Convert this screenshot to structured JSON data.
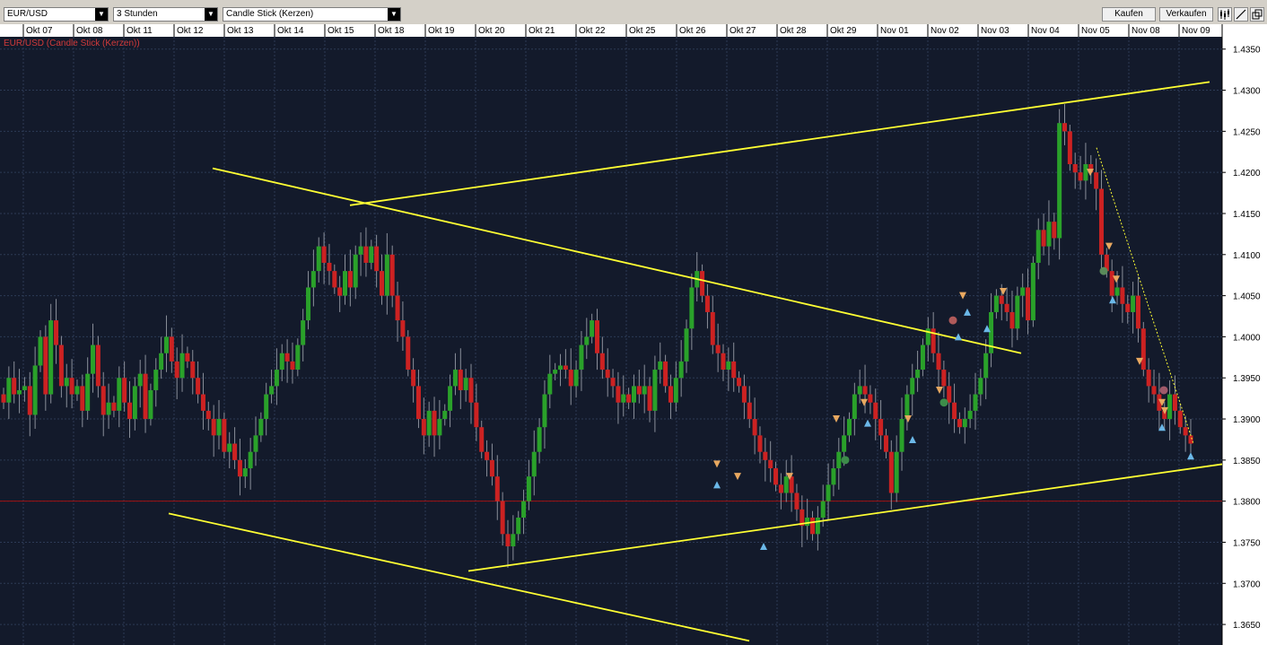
{
  "toolbar": {
    "symbol": "EUR/USD",
    "period": "3 Stunden",
    "chart_type": "Candle Stick (Kerzen)",
    "buy_label": "Kaufen",
    "sell_label": "Verkaufen",
    "icons": [
      "candles-icon",
      "draw-line-icon",
      "expand-window-icon"
    ]
  },
  "chart_label": "EUR/USD (Candle Stick (Kerzen))",
  "colors": {
    "background": "#131a2b",
    "bull": "#2aa12a",
    "bear": "#cc2222",
    "trendline": "#ffff33",
    "hline": "#a01010"
  },
  "chart_data": {
    "type": "candlestick",
    "symbol": "EUR/USD",
    "interval": "3 Stunden",
    "x_ticks": [
      "Okt 07",
      "Okt 08",
      "Okt 11",
      "Okt 12",
      "Okt 13",
      "Okt 14",
      "Okt 15",
      "Okt 18",
      "Okt 19",
      "Okt 20",
      "Okt 21",
      "Okt 22",
      "Okt 25",
      "Okt 26",
      "Okt 27",
      "Okt 28",
      "Okt 29",
      "Nov 01",
      "Nov 02",
      "Nov 03",
      "Nov 04",
      "Nov 05",
      "Nov 08",
      "Nov 09"
    ],
    "y_ticks": [
      "1.4350",
      "1.4300",
      "1.4250",
      "1.4200",
      "1.4150",
      "1.4100",
      "1.4050",
      "1.4000",
      "1.3950",
      "1.3900",
      "1.3850",
      "1.3800",
      "1.3750",
      "1.3700",
      "1.3650"
    ],
    "ylim": [
      1.3625,
      1.4365
    ],
    "horizontal_line": 1.38,
    "closes": [
      1.392,
      1.395,
      1.393,
      1.3935,
      1.394,
      1.3905,
      1.3965,
      1.4,
      1.393,
      1.402,
      1.399,
      1.394,
      1.395,
      1.393,
      1.394,
      1.391,
      1.3955,
      1.399,
      1.394,
      1.3905,
      1.392,
      1.391,
      1.395,
      1.392,
      1.39,
      1.394,
      1.3955,
      1.39,
      1.3935,
      1.396,
      1.398,
      1.4,
      1.397,
      1.395,
      1.398,
      1.397,
      1.395,
      1.393,
      1.391,
      1.39,
      1.388,
      1.39,
      1.386,
      1.387,
      1.385,
      1.383,
      1.384,
      1.386,
      1.388,
      1.39,
      1.393,
      1.394,
      1.396,
      1.398,
      1.397,
      1.396,
      1.399,
      1.402,
      1.406,
      1.408,
      1.411,
      1.409,
      1.408,
      1.406,
      1.405,
      1.408,
      1.406,
      1.41,
      1.411,
      1.409,
      1.411,
      1.408,
      1.405,
      1.41,
      1.405,
      1.402,
      1.4,
      1.396,
      1.394,
      1.39,
      1.388,
      1.391,
      1.388,
      1.39,
      1.391,
      1.394,
      1.396,
      1.3935,
      1.395,
      1.392,
      1.389,
      1.386,
      1.385,
      1.383,
      1.38,
      1.376,
      1.3745,
      1.376,
      1.378,
      1.38,
      1.383,
      1.386,
      1.389,
      1.393,
      1.3955,
      1.396,
      1.3965,
      1.396,
      1.394,
      1.396,
      1.399,
      1.4,
      1.402,
      1.398,
      1.396,
      1.395,
      1.394,
      1.392,
      1.393,
      1.392,
      1.394,
      1.393,
      1.394,
      1.391,
      1.396,
      1.397,
      1.394,
      1.392,
      1.395,
      1.397,
      1.401,
      1.406,
      1.408,
      1.405,
      1.403,
      1.399,
      1.398,
      1.396,
      1.397,
      1.395,
      1.394,
      1.392,
      1.39,
      1.388,
      1.386,
      1.385,
      1.384,
      1.382,
      1.381,
      1.383,
      1.381,
      1.379,
      1.377,
      1.378,
      1.376,
      1.378,
      1.38,
      1.382,
      1.384,
      1.386,
      1.388,
      1.39,
      1.393,
      1.394,
      1.393,
      1.392,
      1.39,
      1.388,
      1.386,
      1.381,
      1.386,
      1.39,
      1.393,
      1.395,
      1.396,
      1.399,
      1.401,
      1.398,
      1.396,
      1.394,
      1.392,
      1.39,
      1.389,
      1.39,
      1.391,
      1.393,
      1.395,
      1.398,
      1.403,
      1.405,
      1.404,
      1.403,
      1.401,
      1.405,
      1.406,
      1.402,
      1.409,
      1.413,
      1.411,
      1.414,
      1.412,
      1.426,
      1.425,
      1.421,
      1.42,
      1.419,
      1.421,
      1.42,
      1.418,
      1.41,
      1.408,
      1.405,
      1.406,
      1.404,
      1.403,
      1.405,
      1.401,
      1.396,
      1.394,
      1.393,
      1.391,
      1.39,
      1.393,
      1.391,
      1.389,
      1.388,
      1.387
    ]
  }
}
